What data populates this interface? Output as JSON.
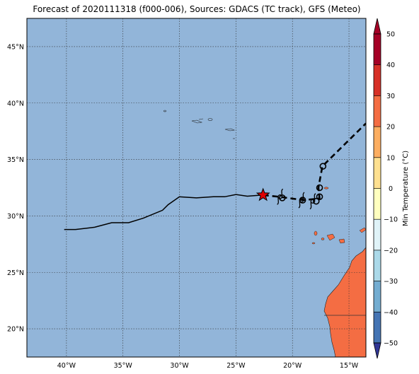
{
  "title": "Forecast of 2020111318 (f000-006), Sources: GDACS (TC track), GFS (Meteo)",
  "map": {
    "lon_range": [
      -43.5,
      -13.5
    ],
    "lat_range": [
      17.5,
      47.5
    ],
    "lon_ticks": [
      -40,
      -35,
      -30,
      -25,
      -20,
      -15
    ],
    "lon_tick_labels": [
      "40°W",
      "35°W",
      "30°W",
      "25°W",
      "20°W",
      "15°W"
    ],
    "lat_ticks": [
      20,
      25,
      30,
      35,
      40,
      45
    ],
    "lat_tick_labels": [
      "20°N",
      "25°N",
      "30°N",
      "35°N",
      "40°N",
      "45°N"
    ],
    "ocean_color": "#92b5d9",
    "land_color": "#f46d43",
    "grid": true
  },
  "track": {
    "past": [
      [
        -40.2,
        28.8
      ],
      [
        -39.2,
        28.8
      ],
      [
        -37.5,
        29.0
      ],
      [
        -36.0,
        29.4
      ],
      [
        -34.5,
        29.4
      ],
      [
        -33.2,
        29.8
      ],
      [
        -31.5,
        30.5
      ],
      [
        -31.0,
        31.0
      ],
      [
        -30.0,
        31.7
      ],
      [
        -28.5,
        31.6
      ],
      [
        -27.0,
        31.7
      ],
      [
        -26.0,
        31.7
      ],
      [
        -25.0,
        31.9
      ],
      [
        -24.0,
        31.75
      ],
      [
        -22.7,
        31.85
      ]
    ],
    "current": [
      -22.6,
      31.85
    ],
    "forecast": [
      [
        -22.6,
        31.85
      ],
      [
        -21.2,
        31.7
      ],
      [
        -19.0,
        31.4
      ],
      [
        -17.6,
        31.55
      ],
      [
        -17.7,
        32.5
      ],
      [
        -17.35,
        34.4
      ],
      [
        -13.5,
        38.2
      ]
    ],
    "cyclone_symbols": [
      [
        -21.1,
        31.7
      ],
      [
        -19.2,
        31.4
      ],
      [
        -18.2,
        31.3
      ]
    ],
    "circles": [
      [
        -20.9,
        31.6
      ],
      [
        -19.1,
        31.4
      ],
      [
        -17.9,
        31.3
      ],
      [
        -17.6,
        31.7
      ],
      [
        -17.6,
        32.5
      ],
      [
        -17.3,
        34.4
      ]
    ],
    "current_color": "#e00000"
  },
  "colorbar": {
    "label": "Min Temperature (°C)",
    "ticks": [
      50,
      40,
      30,
      20,
      10,
      0,
      -10,
      -20,
      -30,
      -40,
      -50
    ],
    "tick_labels": [
      "50",
      "40",
      "30",
      "20",
      "10",
      "0",
      "−10",
      "−20",
      "−30",
      "−40",
      "−50"
    ],
    "colors": [
      "#a50026",
      "#d73027",
      "#f46d43",
      "#fdae61",
      "#fee090",
      "#ffffbf",
      "#e0f3f8",
      "#abd9e9",
      "#74add1",
      "#4575b4",
      "#313695"
    ]
  }
}
